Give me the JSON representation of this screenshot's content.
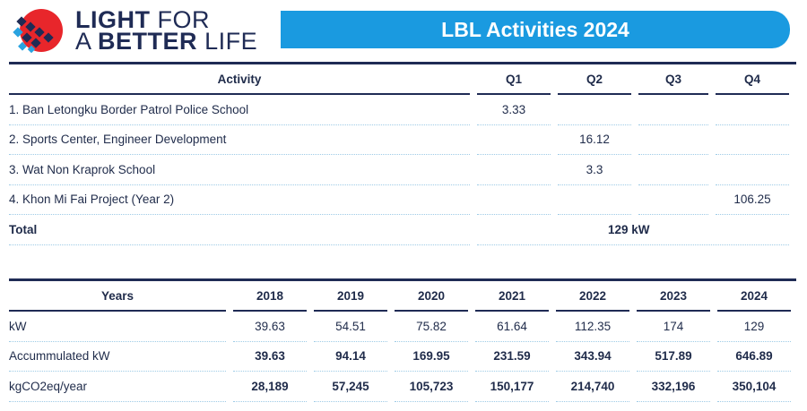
{
  "header": {
    "logo_line1_bold": "LIGHT",
    "logo_line1_rest": "FOR",
    "logo_line2_pre": "A",
    "logo_line2_bold": "BETTER",
    "logo_line2_rest": "LIFE",
    "title": "LBL Activities 2024",
    "brand_color": "#1a9ae0",
    "navy": "#1f2b55"
  },
  "activities": {
    "headers": [
      "Activity",
      "Q1",
      "Q2",
      "Q3",
      "Q4"
    ],
    "rows": [
      {
        "name": "1. Ban Letongku Border Patrol Police School",
        "q": [
          "3.33",
          "",
          "",
          ""
        ]
      },
      {
        "name": "2. Sports Center, Engineer Development",
        "q": [
          "",
          "16.12",
          "",
          ""
        ]
      },
      {
        "name": "3. Wat Non Kraprok School",
        "q": [
          "",
          "3.3",
          "",
          ""
        ]
      },
      {
        "name": "4. Khon Mi Fai Project (Year 2)",
        "q": [
          "",
          "",
          "",
          "106.25"
        ]
      }
    ],
    "total_label": "Total",
    "total_value": "129 kW"
  },
  "years": {
    "headers": [
      "Years",
      "2018",
      "2019",
      "2020",
      "2021",
      "2022",
      "2023",
      "2024"
    ],
    "rows": [
      {
        "label": "kW",
        "values": [
          "39.63",
          "54.51",
          "75.82",
          "61.64",
          "112.35",
          "174",
          "129"
        ]
      },
      {
        "label": "Accummulated kW",
        "values": [
          "39.63",
          "94.14",
          "169.95",
          "231.59",
          "343.94",
          "517.89",
          "646.89"
        ]
      },
      {
        "label": "kgCO2eq/year",
        "values": [
          "28,189",
          "57,245",
          "105,723",
          "150,177",
          "214,740",
          "332,196",
          "350,104"
        ]
      }
    ]
  }
}
